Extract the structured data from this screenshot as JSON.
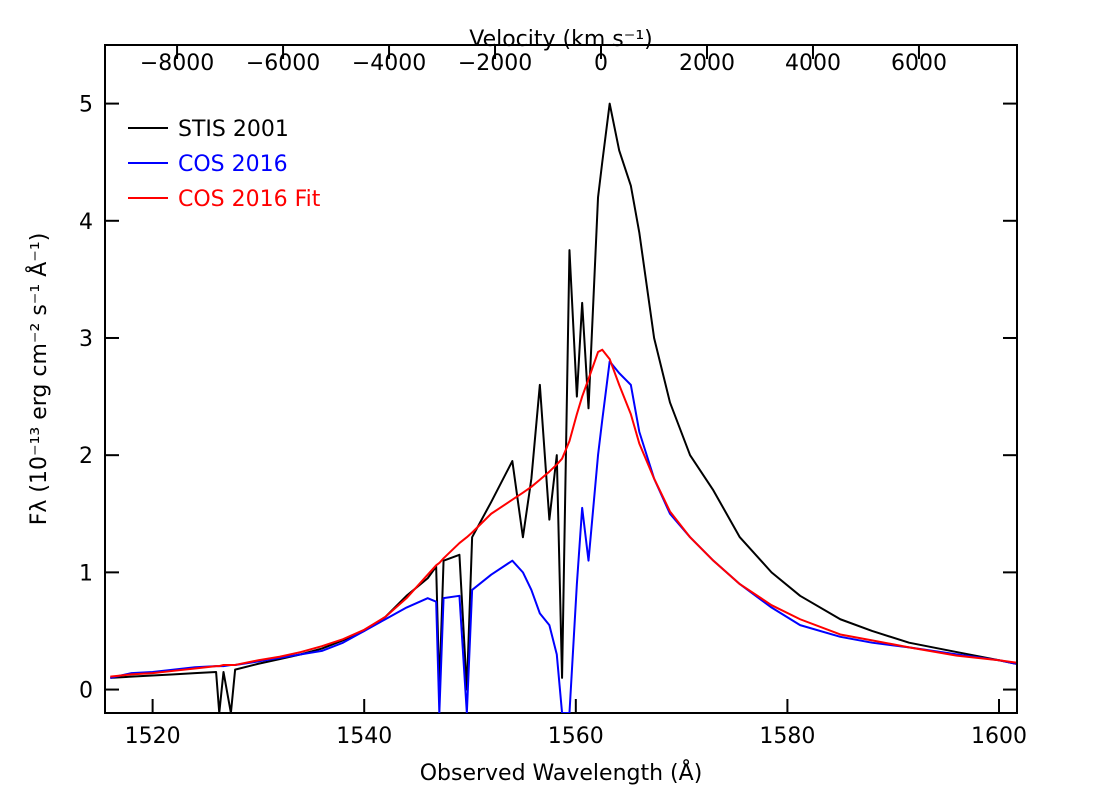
{
  "chart_data": {
    "type": "line",
    "xlabel": "Observed Wavelength (Å)",
    "ylabel": "Fλ (10⁻¹³ erg cm⁻² s⁻¹ Å⁻¹)",
    "x2label": "Velocity (km s⁻¹)",
    "legend": "upper left",
    "xlim": [
      1515.5,
      1601.7
    ],
    "xticks": [
      1520,
      1540,
      1560,
      1580,
      1600
    ],
    "x2lim": [
      -9360,
      7850
    ],
    "x2ticks": [
      {
        "value": -8000,
        "label": "−8000"
      },
      {
        "value": -6000,
        "label": "−6000"
      },
      {
        "value": -4000,
        "label": "−4000"
      },
      {
        "value": -2000,
        "label": "−2000"
      },
      0,
      2000,
      4000,
      6000
    ],
    "ylim": [
      -0.2,
      5.5
    ],
    "yticks": [
      0,
      1,
      2,
      3,
      4,
      5
    ],
    "x": [
      1516,
      1518,
      1520,
      1522,
      1524,
      1526,
      1526.3,
      1526.7,
      1527.4,
      1527.8,
      1530,
      1532,
      1534,
      1536,
      1538,
      1540,
      1542,
      1544,
      1546,
      1546.8,
      1547.1,
      1547.5,
      1549,
      1549.7,
      1550.2,
      1552,
      1554,
      1555,
      1555.8,
      1556.6,
      1557.5,
      1558.2,
      1558.7,
      1559.4,
      1560.1,
      1560.6,
      1561.2,
      1562.1,
      1562.5,
      1563.2,
      1564.1,
      1565.2,
      1566,
      1567.4,
      1568.9,
      1570.8,
      1573,
      1575.5,
      1578.5,
      1581.2,
      1585,
      1588,
      1591.5,
      1596,
      1600,
      1601.6
    ],
    "series": [
      {
        "name": "STIS 2001",
        "color": "#000000",
        "values": [
          0.1,
          0.11,
          0.12,
          0.13,
          0.14,
          0.15,
          -0.2,
          0.15,
          -0.2,
          0.17,
          0.22,
          0.26,
          0.3,
          0.35,
          0.42,
          0.5,
          0.62,
          0.8,
          0.95,
          1.05,
          0.0,
          1.1,
          1.15,
          0.0,
          1.3,
          1.6,
          1.95,
          1.3,
          1.8,
          2.6,
          1.45,
          2.0,
          0.1,
          3.75,
          2.5,
          3.3,
          2.4,
          4.2,
          4.5,
          5.0,
          4.6,
          4.3,
          3.9,
          3.0,
          2.45,
          2.0,
          1.7,
          1.3,
          1.0,
          0.8,
          0.6,
          0.5,
          0.4,
          0.32,
          0.25,
          0.22
        ]
      },
      {
        "name": "COS 2016",
        "color": "#0000ff",
        "values": [
          0.1,
          0.14,
          0.15,
          0.17,
          0.19,
          0.2,
          0.2,
          0.2,
          0.21,
          0.21,
          0.24,
          0.27,
          0.3,
          0.33,
          0.4,
          0.5,
          0.6,
          0.7,
          0.78,
          0.75,
          -0.2,
          0.78,
          0.8,
          -0.2,
          0.85,
          0.98,
          1.1,
          1.0,
          0.85,
          0.65,
          0.55,
          0.3,
          -0.2,
          -0.2,
          0.9,
          1.55,
          1.1,
          2.0,
          2.3,
          2.8,
          2.7,
          2.6,
          2.2,
          1.8,
          1.5,
          1.3,
          1.1,
          0.9,
          0.7,
          0.55,
          0.45,
          0.4,
          0.36,
          0.3,
          0.25,
          0.22
        ]
      },
      {
        "name": "COS 2016 Fit",
        "color": "#ff0000",
        "values": [
          0.11,
          0.13,
          0.14,
          0.16,
          0.18,
          0.2,
          0.2,
          0.21,
          0.21,
          0.21,
          0.25,
          0.28,
          0.32,
          0.37,
          0.43,
          0.51,
          0.62,
          0.78,
          0.98,
          1.06,
          1.08,
          1.12,
          1.25,
          1.3,
          1.34,
          1.5,
          1.62,
          1.68,
          1.73,
          1.79,
          1.86,
          1.92,
          1.97,
          2.12,
          2.35,
          2.5,
          2.65,
          2.88,
          2.9,
          2.82,
          2.6,
          2.35,
          2.1,
          1.8,
          1.52,
          1.3,
          1.1,
          0.9,
          0.72,
          0.6,
          0.47,
          0.42,
          0.36,
          0.29,
          0.25,
          0.23
        ]
      }
    ]
  }
}
